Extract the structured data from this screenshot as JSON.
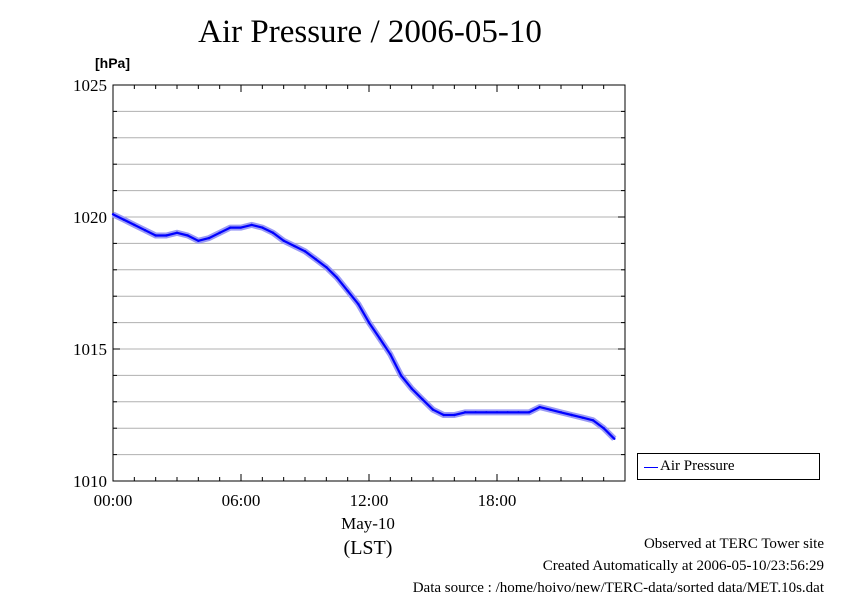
{
  "chart_data": {
    "type": "line",
    "title": "Air Pressure / 2006-05-10",
    "ylabel": "[hPa]",
    "ylim": [
      1010,
      1025
    ],
    "yticks": [
      "1010",
      "1015",
      "1020",
      "1025"
    ],
    "xlim": [
      0,
      24
    ],
    "xticks": [
      "00:00",
      "06:00",
      "12:00",
      "18:00"
    ],
    "xlabel_date": "May-10",
    "xlabel_tz": "(LST)",
    "grid": true,
    "legend_position": "bottom-right outside",
    "series": [
      {
        "name": "Air Pressure",
        "color": "#0000ff",
        "x": [
          0,
          0.5,
          1,
          1.5,
          2,
          2.5,
          3,
          3.5,
          4,
          4.5,
          5,
          5.5,
          6,
          6.5,
          7,
          7.5,
          8,
          8.5,
          9,
          9.5,
          10,
          10.5,
          11,
          11.5,
          12,
          12.5,
          13,
          13.5,
          14,
          14.5,
          15,
          15.5,
          16,
          16.5,
          17,
          17.5,
          18,
          18.5,
          19,
          19.5,
          20,
          20.5,
          21,
          21.5,
          22,
          22.5,
          23,
          23.5
        ],
        "y": [
          1020.1,
          1019.9,
          1019.7,
          1019.5,
          1019.3,
          1019.3,
          1019.4,
          1019.3,
          1019.1,
          1019.2,
          1019.4,
          1019.6,
          1019.6,
          1019.7,
          1019.6,
          1019.4,
          1019.1,
          1018.9,
          1018.7,
          1018.4,
          1018.1,
          1017.7,
          1017.2,
          1016.7,
          1016.0,
          1015.4,
          1014.8,
          1014.0,
          1013.5,
          1013.1,
          1012.7,
          1012.5,
          1012.5,
          1012.6,
          1012.6,
          1012.6,
          1012.6,
          1012.6,
          1012.6,
          1012.6,
          1012.8,
          1012.7,
          1012.6,
          1012.5,
          1012.4,
          1012.3,
          1012.0,
          1011.6
        ]
      }
    ]
  },
  "footer": {
    "line1": "Observed at TERC Tower site",
    "line2": "Created Automatically at 2006-05-10/23:56:29",
    "line3": "Data source : /home/hoivo/new/TERC-data/sorted  data/MET.10s.dat"
  }
}
